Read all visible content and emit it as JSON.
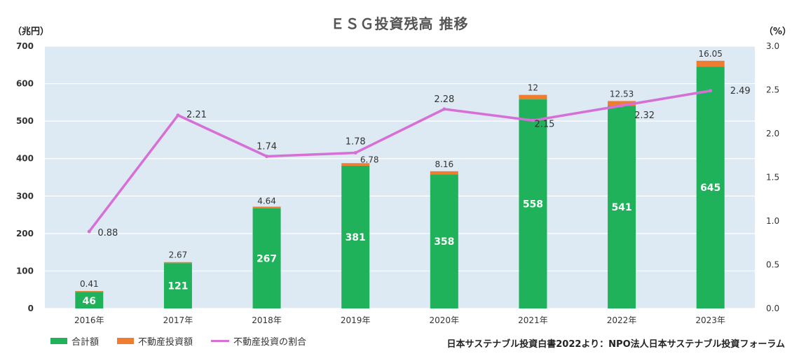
{
  "title": "ＥＳＧ投資残高 推移",
  "left_unit": "（兆円）",
  "right_unit": "（%）",
  "source": "日本サステナブル投資白書2022より：NPO法人日本サステナブル投資フォーラム",
  "colors": {
    "plot_bg": "#dde9f3",
    "green": "#1fb25a",
    "orange": "#ee7d31",
    "line": "#d66fd6"
  },
  "legend": [
    {
      "label": "合計額",
      "kind": "box",
      "color": "#1fb25a"
    },
    {
      "label": "不動産投資額",
      "kind": "box",
      "color": "#ee7d31"
    },
    {
      "label": "不動産投資の割合",
      "kind": "line",
      "color": "#d66fd6"
    }
  ],
  "chart_data": {
    "type": "bar",
    "categories": [
      "2016年",
      "2017年",
      "2018年",
      "2019年",
      "2020年",
      "2021年",
      "2022年",
      "2023年"
    ],
    "series": [
      {
        "name": "合計額",
        "type": "bar",
        "axis": "left",
        "values": [
          46,
          121,
          267,
          381,
          358,
          558,
          541,
          645
        ],
        "labels": [
          "46",
          "121",
          "267",
          "381",
          "358",
          "558",
          "541",
          "645"
        ]
      },
      {
        "name": "不動産投資額",
        "type": "bar-stacked",
        "axis": "left",
        "values": [
          0.41,
          2.67,
          4.64,
          6.78,
          8.16,
          12,
          12.53,
          16.05
        ],
        "labels": [
          "0.41",
          "2.67",
          "4.64",
          "6.78",
          "8.16",
          "12",
          "12.53",
          "16.05"
        ]
      },
      {
        "name": "不動産投資の割合",
        "type": "line",
        "axis": "right",
        "values": [
          0.88,
          2.21,
          1.74,
          1.78,
          2.28,
          2.15,
          2.32,
          2.49
        ],
        "labels": [
          "0.88",
          "2.21",
          "1.74",
          "1.78",
          "2.28",
          "2.15",
          "2.32",
          "2.49"
        ]
      }
    ],
    "y_left": {
      "min": 0,
      "max": 700,
      "ticks": [
        "0",
        "100",
        "200",
        "300",
        "400",
        "500",
        "600",
        "700"
      ]
    },
    "y_right": {
      "min": 0,
      "max": 3.0,
      "ticks": [
        "0.0",
        "0.5",
        "1.0",
        "1.5",
        "2.0",
        "2.5",
        "3.0"
      ]
    },
    "grid": "horizontal",
    "legend_position": "bottom-left"
  }
}
